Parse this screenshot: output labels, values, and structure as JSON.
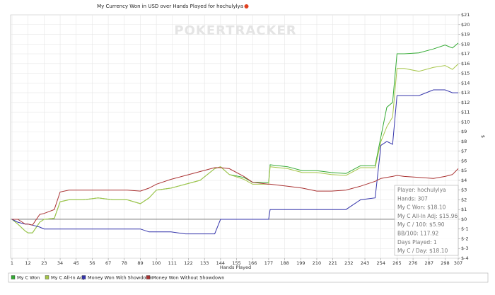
{
  "chart_data": {
    "type": "line",
    "title": "My Currency Won in USD over Hands Played for hochulylya",
    "watermark": "POKERTRACKER",
    "x_label": "Hands Played",
    "y_label": "$",
    "x": [
      1,
      5,
      10,
      12,
      15,
      20,
      23,
      30,
      34,
      40,
      50,
      60,
      70,
      80,
      89,
      95,
      100,
      110,
      120,
      130,
      140,
      144,
      150,
      160,
      166,
      177,
      178,
      190,
      200,
      210,
      220,
      230,
      240,
      250,
      254,
      258,
      262,
      265,
      270,
      280,
      290,
      298,
      303,
      307
    ],
    "series": [
      {
        "name": "My C Won",
        "color": "#33aa33",
        "values": [
          0,
          -0.5,
          -1.2,
          -1.4,
          -1.4,
          -0.3,
          0,
          0.1,
          1.8,
          2,
          2,
          2.2,
          2,
          2,
          1.6,
          2.2,
          3,
          3.2,
          3.6,
          4,
          5.2,
          5.4,
          4.6,
          4.3,
          3.8,
          3.8,
          5.6,
          5.4,
          5,
          5,
          4.8,
          4.7,
          5.5,
          5.5,
          8.5,
          11.5,
          12,
          17,
          17,
          17.1,
          17.5,
          17.9,
          17.6,
          18.1
        ]
      },
      {
        "name": "My C All-In Adj",
        "color": "#a6c64a",
        "values": [
          0,
          -0.5,
          -1.2,
          -1.4,
          -1.4,
          -0.3,
          0,
          0.1,
          1.8,
          2,
          2,
          2.2,
          2,
          2,
          1.6,
          2.2,
          3,
          3.2,
          3.6,
          4,
          5.2,
          5.4,
          4.6,
          4.1,
          3.6,
          3.6,
          5.4,
          5.2,
          4.8,
          4.8,
          4.6,
          4.5,
          5.3,
          5.3,
          8,
          9.5,
          10.5,
          15.5,
          15.5,
          15.2,
          15.6,
          15.8,
          15.4,
          15.96
        ]
      },
      {
        "name": "Money Won With Showdown",
        "color": "#3333aa",
        "values": [
          0,
          -0.3,
          -0.5,
          -0.5,
          -0.6,
          -0.8,
          -1,
          -1,
          -1,
          -1,
          -1,
          -1,
          -1,
          -1,
          -1,
          -1.3,
          -1.3,
          -1.3,
          -1.5,
          -1.5,
          -1.5,
          0,
          0,
          0,
          0,
          0,
          1,
          1,
          1,
          1,
          1,
          1,
          2,
          2.2,
          7.6,
          8,
          7.7,
          12.7,
          12.7,
          12.7,
          13.3,
          13.3,
          13,
          13
        ]
      },
      {
        "name": "Money Won Without Showdown",
        "color": "#aa3333",
        "values": [
          0,
          0,
          -0.5,
          -0.5,
          -0.6,
          0.5,
          0.6,
          1,
          2.8,
          3,
          3,
          3,
          3,
          3,
          2.9,
          3.2,
          3.6,
          4.1,
          4.5,
          4.9,
          5.3,
          5.3,
          5.2,
          4.4,
          3.8,
          3.6,
          3.6,
          3.4,
          3.2,
          2.9,
          2.9,
          3,
          3.4,
          3.9,
          4.2,
          4.3,
          4.4,
          4.5,
          4.4,
          4.3,
          4.2,
          4.4,
          4.6,
          5.2
        ]
      }
    ],
    "xlim": [
      1,
      307
    ],
    "xticks": [
      1,
      12,
      23,
      34,
      45,
      56,
      67,
      78,
      89,
      100,
      111,
      122,
      133,
      144,
      155,
      166,
      177,
      188,
      199,
      210,
      221,
      232,
      243,
      254,
      265,
      276,
      287,
      298,
      307
    ],
    "ylim": [
      -4,
      21
    ],
    "yticks": [
      {
        "value": -4,
        "label": "$-4"
      },
      {
        "value": -3,
        "label": "$-3"
      },
      {
        "value": -2,
        "label": "$-2"
      },
      {
        "value": -1,
        "label": "$-1"
      },
      {
        "value": 0,
        "label": "$0"
      },
      {
        "value": 1,
        "label": "$1"
      },
      {
        "value": 2,
        "label": "$2"
      },
      {
        "value": 3,
        "label": "$3"
      },
      {
        "value": 4,
        "label": "$4"
      },
      {
        "value": 5,
        "label": "$5"
      },
      {
        "value": 6,
        "label": "$6"
      },
      {
        "value": 7,
        "label": "$7"
      },
      {
        "value": 8,
        "label": "$8"
      },
      {
        "value": 9,
        "label": "$9"
      },
      {
        "value": 10,
        "label": "$10"
      },
      {
        "value": 11,
        "label": "$11"
      },
      {
        "value": 12,
        "label": "$12"
      },
      {
        "value": 13,
        "label": "$13"
      },
      {
        "value": 14,
        "label": "$14"
      },
      {
        "value": 15,
        "label": "$15"
      },
      {
        "value": 16,
        "label": "$16"
      },
      {
        "value": 17,
        "label": "$17"
      },
      {
        "value": 18,
        "label": "$18"
      },
      {
        "value": 19,
        "label": "$19"
      },
      {
        "value": 20,
        "label": "$20"
      },
      {
        "value": 21,
        "label": "$21"
      }
    ],
    "grid": true,
    "legend": "bottom",
    "info_box": [
      "Player: hochulylya",
      "Hands: 307",
      "My C Won: $18.10",
      "My C All-In Adj: $15.96",
      "My C / 100: $5.90",
      "BB/100: 117.92",
      "Days Played: 1",
      "My C / Day: $18.10"
    ]
  }
}
